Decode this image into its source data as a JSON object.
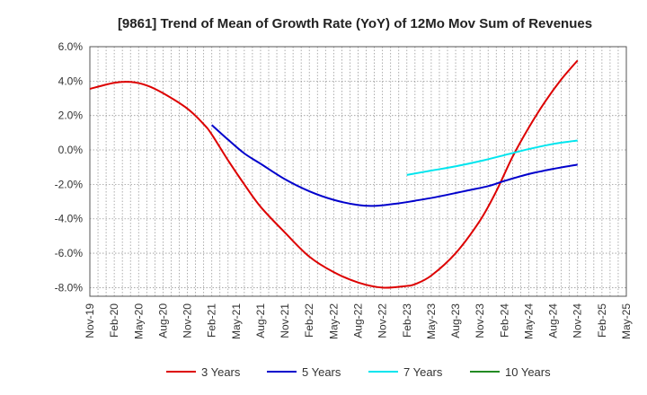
{
  "chart_data": {
    "type": "line",
    "title": "[9861]  Trend of Mean of Growth Rate (YoY) of 12Mo Mov Sum of Revenues",
    "xlabel": "",
    "ylabel": "",
    "ylim": [
      -8.5,
      6.0
    ],
    "yticks": [
      6.0,
      4.0,
      2.0,
      0.0,
      -2.0,
      -4.0,
      -6.0,
      -8.0
    ],
    "ytick_labels": [
      "6.0%",
      "4.0%",
      "2.0%",
      "0.0%",
      "-2.0%",
      "-4.0%",
      "-6.0%",
      "-8.0%"
    ],
    "x_start": "Nov-19",
    "x_months": 66,
    "xtick_labels": [
      "Nov-19",
      "Feb-20",
      "May-20",
      "Aug-20",
      "Nov-20",
      "Feb-21",
      "May-21",
      "Aug-21",
      "Nov-21",
      "Feb-22",
      "May-22",
      "Aug-22",
      "Nov-22",
      "Feb-23",
      "May-23",
      "Aug-23",
      "Nov-23",
      "Feb-24",
      "May-24",
      "Aug-24",
      "Nov-24",
      "Feb-25",
      "May-25"
    ],
    "grid": true,
    "legend_position": "bottom",
    "series": [
      {
        "name": "3 Years",
        "color": "#dd0000",
        "points": [
          [
            0,
            3.55
          ],
          [
            3,
            3.9
          ],
          [
            5,
            3.95
          ],
          [
            7,
            3.75
          ],
          [
            9,
            3.3
          ],
          [
            12,
            2.4
          ],
          [
            14,
            1.5
          ],
          [
            15,
            0.9
          ],
          [
            17,
            -0.6
          ],
          [
            19,
            -2.0
          ],
          [
            21,
            -3.3
          ],
          [
            24,
            -4.8
          ],
          [
            27,
            -6.2
          ],
          [
            30,
            -7.1
          ],
          [
            33,
            -7.7
          ],
          [
            36,
            -8.0
          ],
          [
            39,
            -7.9
          ],
          [
            40,
            -7.8
          ],
          [
            42,
            -7.3
          ],
          [
            45,
            -6.0
          ],
          [
            48,
            -4.1
          ],
          [
            50,
            -2.4
          ],
          [
            52,
            -0.4
          ],
          [
            54,
            1.3
          ],
          [
            56,
            2.8
          ],
          [
            58,
            4.1
          ],
          [
            60,
            5.2
          ]
        ]
      },
      {
        "name": "5 Years",
        "color": "#0000cc",
        "points": [
          [
            15,
            1.45
          ],
          [
            17,
            0.6
          ],
          [
            19,
            -0.2
          ],
          [
            21,
            -0.8
          ],
          [
            24,
            -1.7
          ],
          [
            27,
            -2.4
          ],
          [
            30,
            -2.9
          ],
          [
            33,
            -3.2
          ],
          [
            35,
            -3.25
          ],
          [
            38,
            -3.1
          ],
          [
            40,
            -2.95
          ],
          [
            43,
            -2.7
          ],
          [
            46,
            -2.4
          ],
          [
            49,
            -2.1
          ],
          [
            51,
            -1.8
          ],
          [
            54,
            -1.4
          ],
          [
            57,
            -1.1
          ],
          [
            60,
            -0.85
          ]
        ]
      },
      {
        "name": "7 Years",
        "color": "#00e5ee",
        "points": [
          [
            39,
            -1.45
          ],
          [
            42,
            -1.2
          ],
          [
            45,
            -0.95
          ],
          [
            48,
            -0.65
          ],
          [
            51,
            -0.3
          ],
          [
            54,
            0.05
          ],
          [
            57,
            0.35
          ],
          [
            60,
            0.55
          ]
        ]
      },
      {
        "name": "10 Years",
        "color": "#228b22",
        "points": []
      }
    ]
  }
}
